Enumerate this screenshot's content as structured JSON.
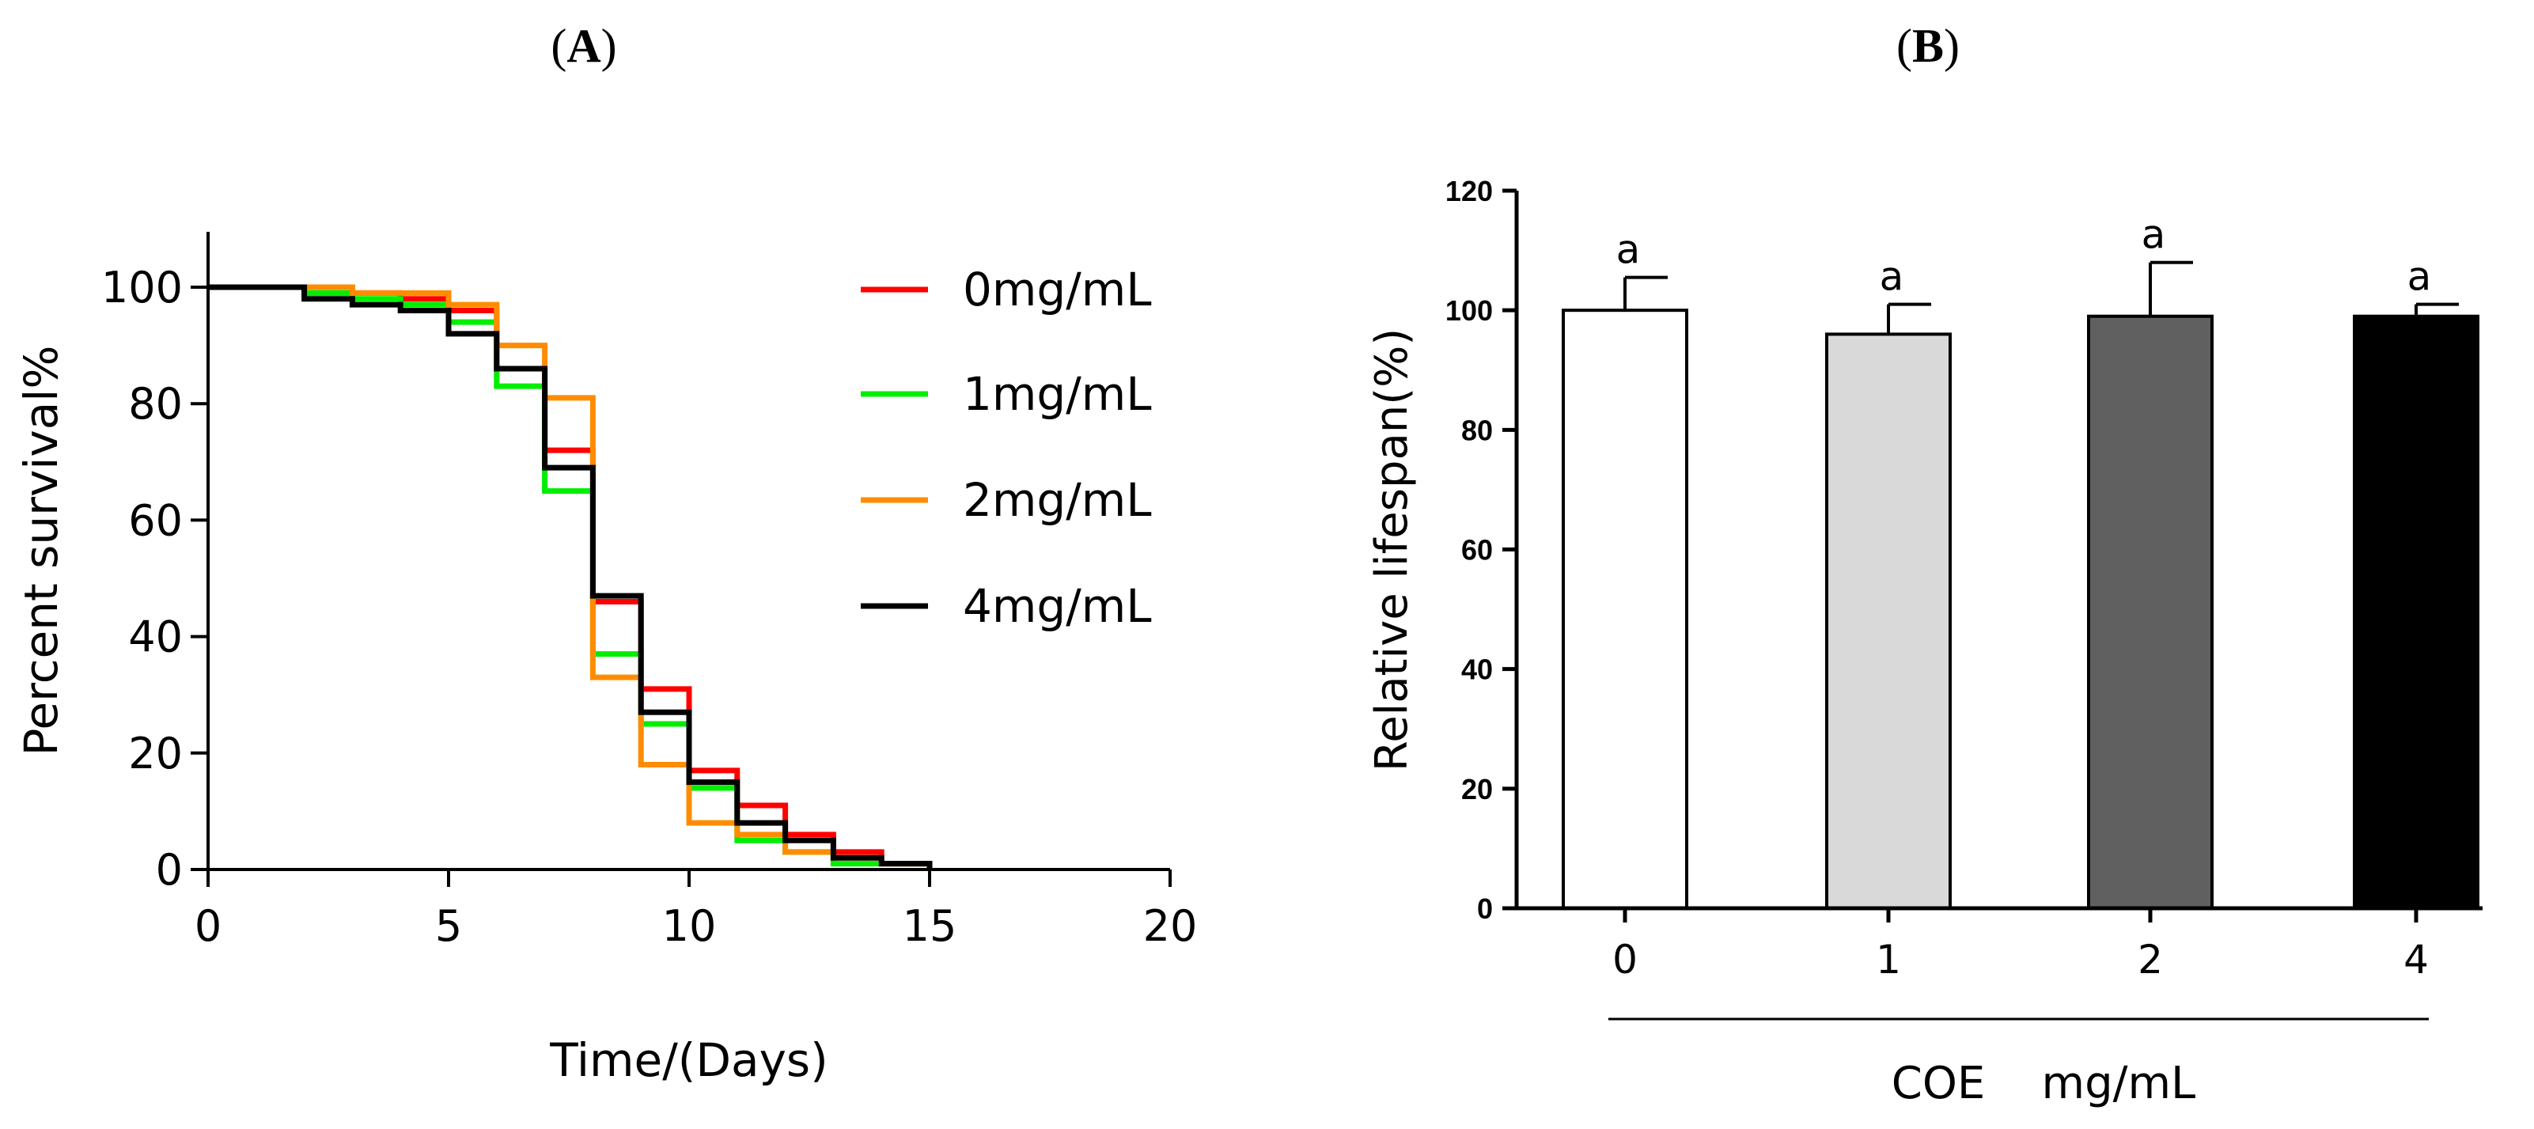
{
  "chart_data": [
    {
      "type": "line",
      "panel_label": "(A)",
      "panel_letter": "A",
      "xlabel": "Time/(Days)",
      "ylabel": "Percent survival%",
      "xlim": [
        0,
        20
      ],
      "ylim": [
        0,
        110
      ],
      "xticks": [
        0,
        5,
        10,
        15,
        20
      ],
      "yticks": [
        0,
        20,
        40,
        60,
        80,
        100
      ],
      "legend_position": "top-right",
      "series": [
        {
          "name": "0mg/mL",
          "color": "#ff0000",
          "x": [
            0,
            2,
            3,
            4,
            5,
            6,
            7,
            8,
            9,
            10,
            11,
            12,
            13,
            14,
            15
          ],
          "y": [
            100,
            99,
            99,
            98,
            96,
            86,
            72,
            46,
            31,
            17,
            11,
            6,
            3,
            1,
            0
          ]
        },
        {
          "name": "1mg/mL",
          "color": "#00ee00",
          "x": [
            0,
            2,
            3,
            4,
            5,
            6,
            7,
            8,
            9,
            10,
            11,
            12,
            13,
            14,
            15
          ],
          "y": [
            100,
            99,
            98,
            97,
            94,
            83,
            65,
            37,
            25,
            14,
            5,
            3,
            1,
            1,
            0
          ]
        },
        {
          "name": "2mg/mL",
          "color": "#ff8c00",
          "x": [
            0,
            2,
            3,
            4,
            5,
            6,
            7,
            8,
            9,
            10,
            11,
            12,
            13,
            14,
            15
          ],
          "y": [
            100,
            100,
            99,
            99,
            97,
            90,
            81,
            33,
            18,
            8,
            6,
            3,
            2,
            1,
            0
          ]
        },
        {
          "name": "4mg/mL",
          "color": "#000000",
          "x": [
            0,
            2,
            3,
            4,
            5,
            6,
            7,
            8,
            9,
            10,
            11,
            12,
            13,
            14,
            15
          ],
          "y": [
            100,
            98,
            97,
            96,
            92,
            86,
            69,
            47,
            27,
            15,
            8,
            5,
            2,
            1,
            0
          ]
        }
      ]
    },
    {
      "type": "bar",
      "panel_label": "(B)",
      "panel_letter": "B",
      "ylabel": "Relative lifespan(%)",
      "xlabel": "COE    mg/mL",
      "ylim": [
        0,
        120
      ],
      "yticks": [
        0,
        20,
        40,
        60,
        80,
        100,
        120
      ],
      "categories": [
        "0",
        "1",
        "2",
        "4"
      ],
      "values": [
        100,
        96,
        99,
        99
      ],
      "errors": [
        5.5,
        5,
        9,
        2
      ],
      "significance": [
        "a",
        "a",
        "a",
        "a"
      ],
      "bar_colors": [
        "#ffffff",
        "#d9d9d9",
        "#606060",
        "#000000"
      ]
    }
  ]
}
